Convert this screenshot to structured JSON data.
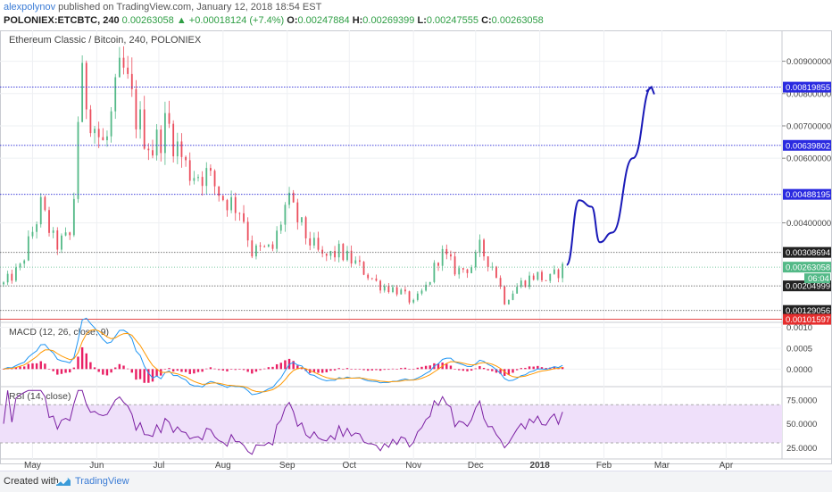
{
  "header": {
    "user": "alexpolynov",
    "published": "published on TradingView.com, January 12, 2018 18:54 EST",
    "symbol": "POLONIEX:ETCBTC, 240",
    "last": "0.00263058",
    "change_arrow": "▲",
    "change": "+0.00018124 (+7.4%)",
    "o_label": "O:",
    "o": "0.00247884",
    "h_label": "H:",
    "h": "0.00269399",
    "l_label": "L:",
    "l": "0.00247555",
    "c_label": "C:",
    "c": "0.00263058"
  },
  "colors": {
    "up": "#53b987",
    "down": "#eb4d5c",
    "hline_blue": "#2a2ad6",
    "hline_gray": "#666666",
    "hline_red": "#e03030",
    "drawing": "#1a1ab8",
    "macd_line": "#2196f3",
    "signal_line": "#ff9800",
    "rsi_line": "#7b1fa2",
    "rsi_band": "#efe0fa"
  },
  "chart_data": [
    {
      "type": "candlestick",
      "title": "Ethereum Classic / Bitcoin, 240, POLONIEX",
      "ylim": [
        0.00095,
        0.0099
      ],
      "y_ticks": [
        "0.00900000",
        "0.00800000",
        "0.00700000",
        "0.00600000",
        "0.00400000"
      ],
      "y_tick_values": [
        0.009,
        0.008,
        0.007,
        0.006,
        0.004
      ],
      "x_ticks": [
        "May",
        "Jun",
        "Jul",
        "Aug",
        "Sep",
        "Oct",
        "Nov",
        "Dec",
        "2018",
        "Feb",
        "Mar",
        "Apr"
      ],
      "x_tick_dates": [
        "2017-05-01",
        "2017-06-01",
        "2017-07-01",
        "2017-08-01",
        "2017-09-01",
        "2017-10-01",
        "2017-11-01",
        "2017-12-01",
        "2018-01-01",
        "2018-02-01",
        "2018-03-01",
        "2018-04-01"
      ],
      "x_range": [
        "2017-04-17",
        "2018-04-28"
      ],
      "price_path": [
        {
          "date": "2017-04-17",
          "price": 0.0021
        },
        {
          "date": "2017-04-25",
          "price": 0.0026
        },
        {
          "date": "2017-05-05",
          "price": 0.0045
        },
        {
          "date": "2017-05-12",
          "price": 0.0033
        },
        {
          "date": "2017-05-20",
          "price": 0.0036
        },
        {
          "date": "2017-05-24",
          "price": 0.0085
        },
        {
          "date": "2017-06-01",
          "price": 0.0068
        },
        {
          "date": "2017-06-05",
          "price": 0.0063
        },
        {
          "date": "2017-06-13",
          "price": 0.0088
        },
        {
          "date": "2017-06-20",
          "price": 0.0073
        },
        {
          "date": "2017-06-28",
          "price": 0.0063
        },
        {
          "date": "2017-07-05",
          "price": 0.0071
        },
        {
          "date": "2017-07-15",
          "price": 0.0056
        },
        {
          "date": "2017-07-24",
          "price": 0.0055
        },
        {
          "date": "2017-08-01",
          "price": 0.0048
        },
        {
          "date": "2017-08-10",
          "price": 0.0044
        },
        {
          "date": "2017-08-15",
          "price": 0.0031
        },
        {
          "date": "2017-08-25",
          "price": 0.0032
        },
        {
          "date": "2017-09-01",
          "price": 0.0047
        },
        {
          "date": "2017-09-10",
          "price": 0.0036
        },
        {
          "date": "2017-09-18",
          "price": 0.0029
        },
        {
          "date": "2017-09-26",
          "price": 0.0031
        },
        {
          "date": "2017-10-05",
          "price": 0.0027
        },
        {
          "date": "2017-10-15",
          "price": 0.0021
        },
        {
          "date": "2017-10-25",
          "price": 0.0019
        },
        {
          "date": "2017-11-01",
          "price": 0.0015
        },
        {
          "date": "2017-11-08",
          "price": 0.0021
        },
        {
          "date": "2017-11-14",
          "price": 0.0031
        },
        {
          "date": "2017-11-22",
          "price": 0.0025
        },
        {
          "date": "2017-11-30",
          "price": 0.0027
        },
        {
          "date": "2017-12-03",
          "price": 0.0032
        },
        {
          "date": "2017-12-10",
          "price": 0.0026
        },
        {
          "date": "2017-12-15",
          "price": 0.0016
        },
        {
          "date": "2017-12-22",
          "price": 0.0021
        },
        {
          "date": "2017-12-30",
          "price": 0.0024
        },
        {
          "date": "2018-01-05",
          "price": 0.0022
        },
        {
          "date": "2018-01-12",
          "price": 0.0026
        }
      ],
      "horizontal_levels": [
        {
          "value": 0.00819855,
          "label": "0.00819855",
          "style": "blue"
        },
        {
          "value": 0.00639802,
          "label": "0.00639802",
          "style": "blue"
        },
        {
          "value": 0.00488195,
          "label": "0.00488195",
          "style": "blue"
        },
        {
          "value": 0.00308694,
          "label": "0.00308694",
          "style": "gray"
        },
        {
          "value": 0.00204999,
          "label": "0.00204999",
          "style": "gray"
        },
        {
          "value": 0.00129056,
          "label": "0.00129056",
          "style": "gray"
        },
        {
          "value": 0.00101597,
          "label": "0.00101597",
          "style": "red"
        }
      ],
      "current_price": {
        "value": 0.00263058,
        "label": "0.00263058",
        "countdown": "06:04"
      },
      "projection_path": [
        {
          "date": "2018-01-14",
          "price": 0.0027
        },
        {
          "date": "2018-01-20",
          "price": 0.0047
        },
        {
          "date": "2018-01-26",
          "price": 0.0045
        },
        {
          "date": "2018-01-30",
          "price": 0.0034
        },
        {
          "date": "2018-02-05",
          "price": 0.0037
        },
        {
          "date": "2018-02-15",
          "price": 0.006
        },
        {
          "date": "2018-02-24",
          "price": 0.0082
        }
      ]
    },
    {
      "type": "line",
      "title": "MACD (12, 26, close, 9)",
      "ylim": [
        -0.0004,
        0.0011
      ],
      "y_ticks": [
        "0.0010",
        "0.0005",
        "0.0000"
      ],
      "y_tick_values": [
        0.001,
        0.0005,
        0.0
      ]
    },
    {
      "type": "line",
      "title": "RSI (14, close)",
      "ylim": [
        15,
        88
      ],
      "band": [
        30,
        70
      ],
      "y_ticks": [
        "75.0000",
        "50.0000",
        "25.0000"
      ],
      "y_tick_values": [
        75,
        50,
        25
      ]
    }
  ],
  "footer": {
    "created_with": "Created with",
    "brand": "TradingView"
  }
}
